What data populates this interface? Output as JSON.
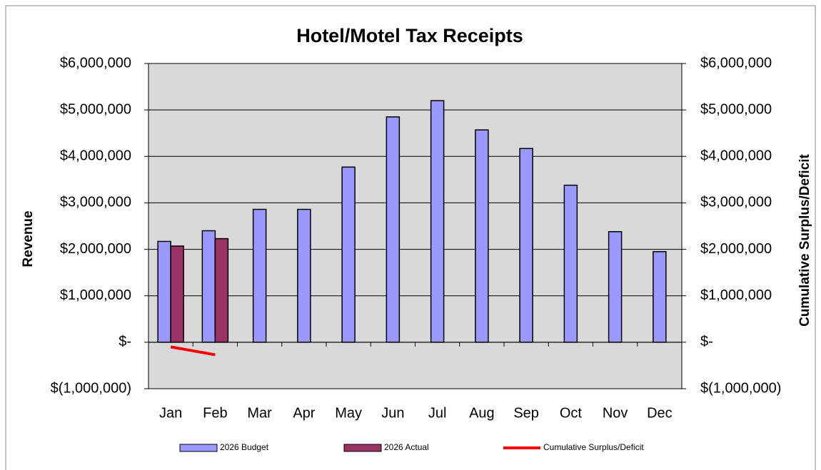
{
  "chart_data": {
    "type": "bar",
    "title": "Hotel/Motel Tax Receipts",
    "y_label": "Revenue",
    "y2_label": "Cumulative Surplus/Deficit",
    "categories": [
      "Jan",
      "Feb",
      "Mar",
      "Apr",
      "May",
      "Jun",
      "Jul",
      "Aug",
      "Sep",
      "Oct",
      "Nov",
      "Dec"
    ],
    "series": [
      {
        "name": "2026 Budget",
        "type": "bar",
        "color": "#9999ff",
        "values": [
          2170000,
          2400000,
          2860000,
          2860000,
          3770000,
          4850000,
          5200000,
          4570000,
          4170000,
          3380000,
          2380000,
          1950000
        ]
      },
      {
        "name": "2026 Actual",
        "type": "bar",
        "color": "#993366",
        "values": [
          2070000,
          2230000,
          null,
          null,
          null,
          null,
          null,
          null,
          null,
          null,
          null,
          null
        ]
      },
      {
        "name": "Cumulative Surplus/Deficit",
        "type": "line",
        "axis": "y2",
        "color": "#ff0000",
        "values": [
          -100000,
          -270000,
          null,
          null,
          null,
          null,
          null,
          null,
          null,
          null,
          null,
          null
        ]
      }
    ],
    "ylim": [
      -1000000,
      6000000
    ],
    "yticks": [
      {
        "value": -1000000,
        "label": "$(1,000,000)"
      },
      {
        "value": 0,
        "label": "$-"
      },
      {
        "value": 1000000,
        "label": "$1,000,000"
      },
      {
        "value": 2000000,
        "label": "$2,000,000"
      },
      {
        "value": 3000000,
        "label": "$3,000,000"
      },
      {
        "value": 4000000,
        "label": "$4,000,000"
      },
      {
        "value": 5000000,
        "label": "$5,000,000"
      },
      {
        "value": 6000000,
        "label": "$6,000,000"
      }
    ],
    "y2lim": [
      -1000000,
      6000000
    ],
    "y2ticks": [
      {
        "value": -1000000,
        "label": "$(1,000,000)"
      },
      {
        "value": 0,
        "label": "$-"
      },
      {
        "value": 1000000,
        "label": "$1,000,000"
      },
      {
        "value": 2000000,
        "label": "$2,000,000"
      },
      {
        "value": 3000000,
        "label": "$3,000,000"
      },
      {
        "value": 4000000,
        "label": "$4,000,000"
      },
      {
        "value": 5000000,
        "label": "$5,000,000"
      },
      {
        "value": 6000000,
        "label": "$6,000,000"
      }
    ],
    "grid": true,
    "legend": "bottom"
  }
}
